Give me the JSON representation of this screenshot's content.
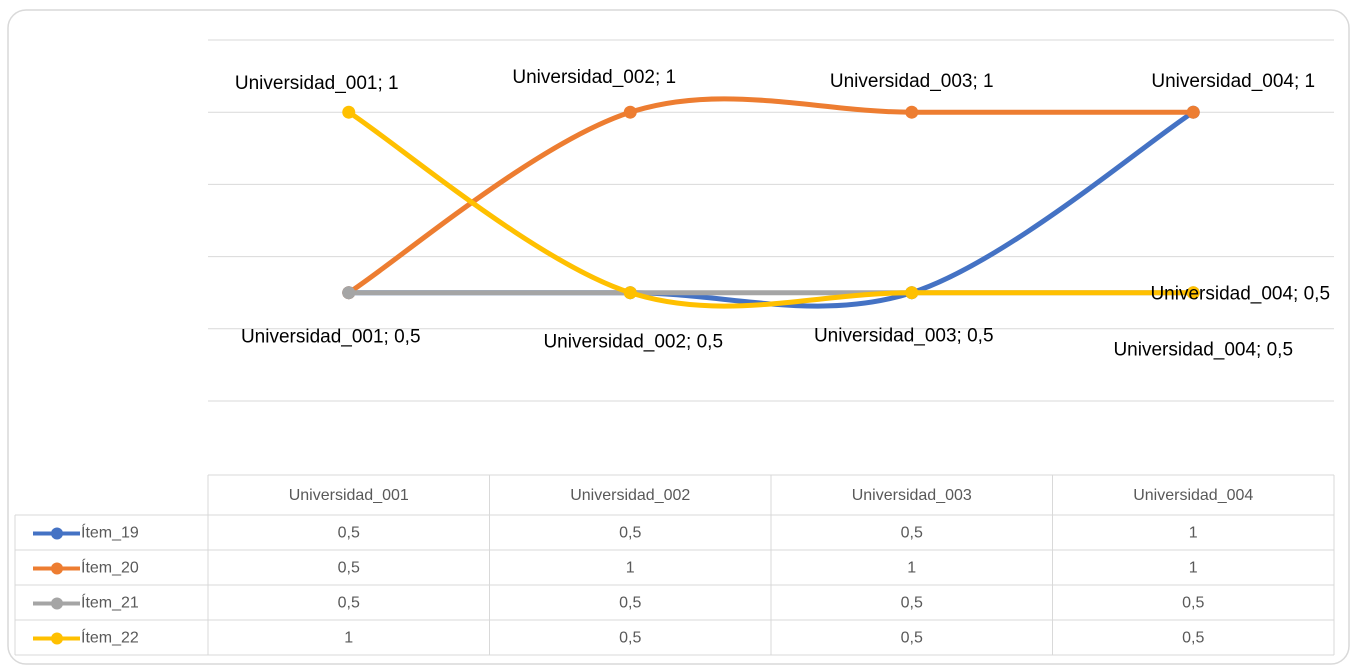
{
  "chart_data": {
    "type": "line",
    "categories": [
      "Universidad_001",
      "Universidad_002",
      "Universidad_003",
      "Universidad_004"
    ],
    "series": [
      {
        "name": "Ítem_19",
        "color": "#4472c4",
        "values": [
          0.5,
          0.5,
          0.5,
          1
        ],
        "value_labels": [
          "0,5",
          "0,5",
          "0,5",
          "1"
        ],
        "data_labels": []
      },
      {
        "name": "Ítem_20",
        "color": "#ed7d31",
        "values": [
          0.5,
          1,
          1,
          1
        ],
        "value_labels": [
          "0,5",
          "1",
          "1",
          "1"
        ],
        "data_labels": [
          0,
          1,
          2,
          3
        ]
      },
      {
        "name": "Ítem_21",
        "color": "#a5a5a5",
        "values": [
          0.5,
          0.5,
          0.5,
          0.5
        ],
        "value_labels": [
          "0,5",
          "0,5",
          "0,5",
          "0,5"
        ],
        "data_labels": [
          3
        ]
      },
      {
        "name": "Ítem_22",
        "color": "#ffc000",
        "values": [
          1,
          0.5,
          0.5,
          0.5
        ],
        "value_labels": [
          "1",
          "0,5",
          "0,5",
          "0,5"
        ],
        "data_labels": [
          0,
          1,
          2,
          3
        ]
      }
    ],
    "data_label_separator": "; ",
    "ylim": [
      0.2,
      1.2
    ],
    "yticks": [
      0.2,
      0.4,
      0.6,
      0.8,
      1,
      1.2
    ],
    "grid": true,
    "smooth": true,
    "data_table": true
  }
}
